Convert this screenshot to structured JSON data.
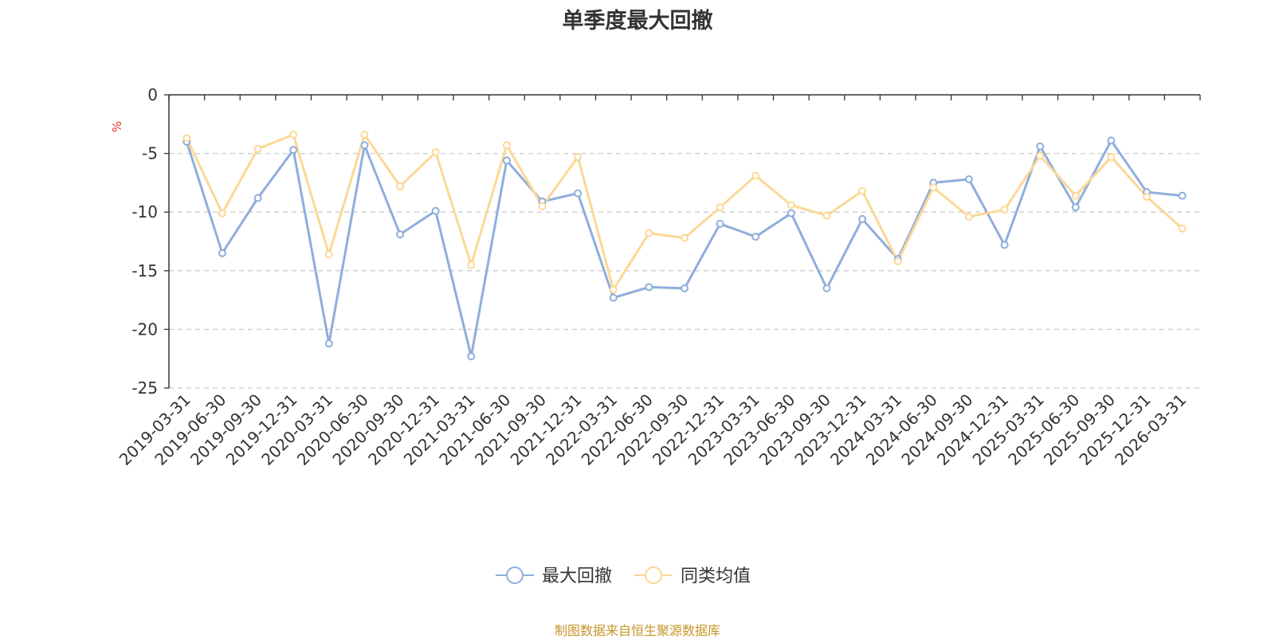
{
  "chart_data": {
    "type": "line",
    "title": "单季度最大回撤",
    "ylabel": "%",
    "xlabel": "",
    "ylim": [
      -25,
      0
    ],
    "yticks": [
      0,
      -5,
      -10,
      -15,
      -20,
      -25
    ],
    "grid": true,
    "legend_position": "bottom",
    "x": [
      "2019-03-31",
      "2019-06-30",
      "2019-09-30",
      "2019-12-31",
      "2020-03-31",
      "2020-06-30",
      "2020-09-30",
      "2020-12-31",
      "2021-03-31",
      "2021-06-30",
      "2021-09-30",
      "2021-12-31",
      "2022-03-31",
      "2022-06-30",
      "2022-09-30",
      "2022-12-31",
      "2023-03-31",
      "2023-06-30",
      "2023-09-30",
      "2023-12-31",
      "2024-03-31",
      "2024-06-30",
      "2024-09-30",
      "2024-12-31",
      "2025-03-31",
      "2025-06-30",
      "2025-09-30",
      "2025-12-31",
      "2026-03-31"
    ],
    "series": [
      {
        "name": "最大回撤",
        "color": "#8eaedc",
        "values": [
          -4.0,
          -13.5,
          -8.8,
          -4.7,
          -21.2,
          -4.3,
          -11.9,
          -9.9,
          -22.3,
          -5.6,
          -9.1,
          -8.4,
          -17.3,
          -16.4,
          -16.5,
          -11.0,
          -12.1,
          -10.1,
          -16.5,
          -10.6,
          -14.0,
          -7.5,
          -7.2,
          -12.8,
          -4.4,
          -9.6,
          -3.9,
          -8.3,
          -8.6
        ]
      },
      {
        "name": "同类均值",
        "color": "#fbd896",
        "values": [
          -3.7,
          -10.1,
          -4.6,
          -3.4,
          -13.6,
          -3.4,
          -7.8,
          -4.9,
          -14.5,
          -4.3,
          -9.5,
          -5.3,
          -16.6,
          -11.8,
          -12.2,
          -9.6,
          -6.9,
          -9.4,
          -10.3,
          -8.2,
          -14.2,
          -7.9,
          -10.4,
          -9.8,
          -5.2,
          -8.6,
          -5.3,
          -8.7,
          -11.4
        ]
      }
    ],
    "source_note": "制图数据来自恒生聚源数据库",
    "colors": {
      "axis": "#333333",
      "grid": "#cccccc",
      "unit": "#e0322e",
      "source": "#c8952a"
    }
  }
}
